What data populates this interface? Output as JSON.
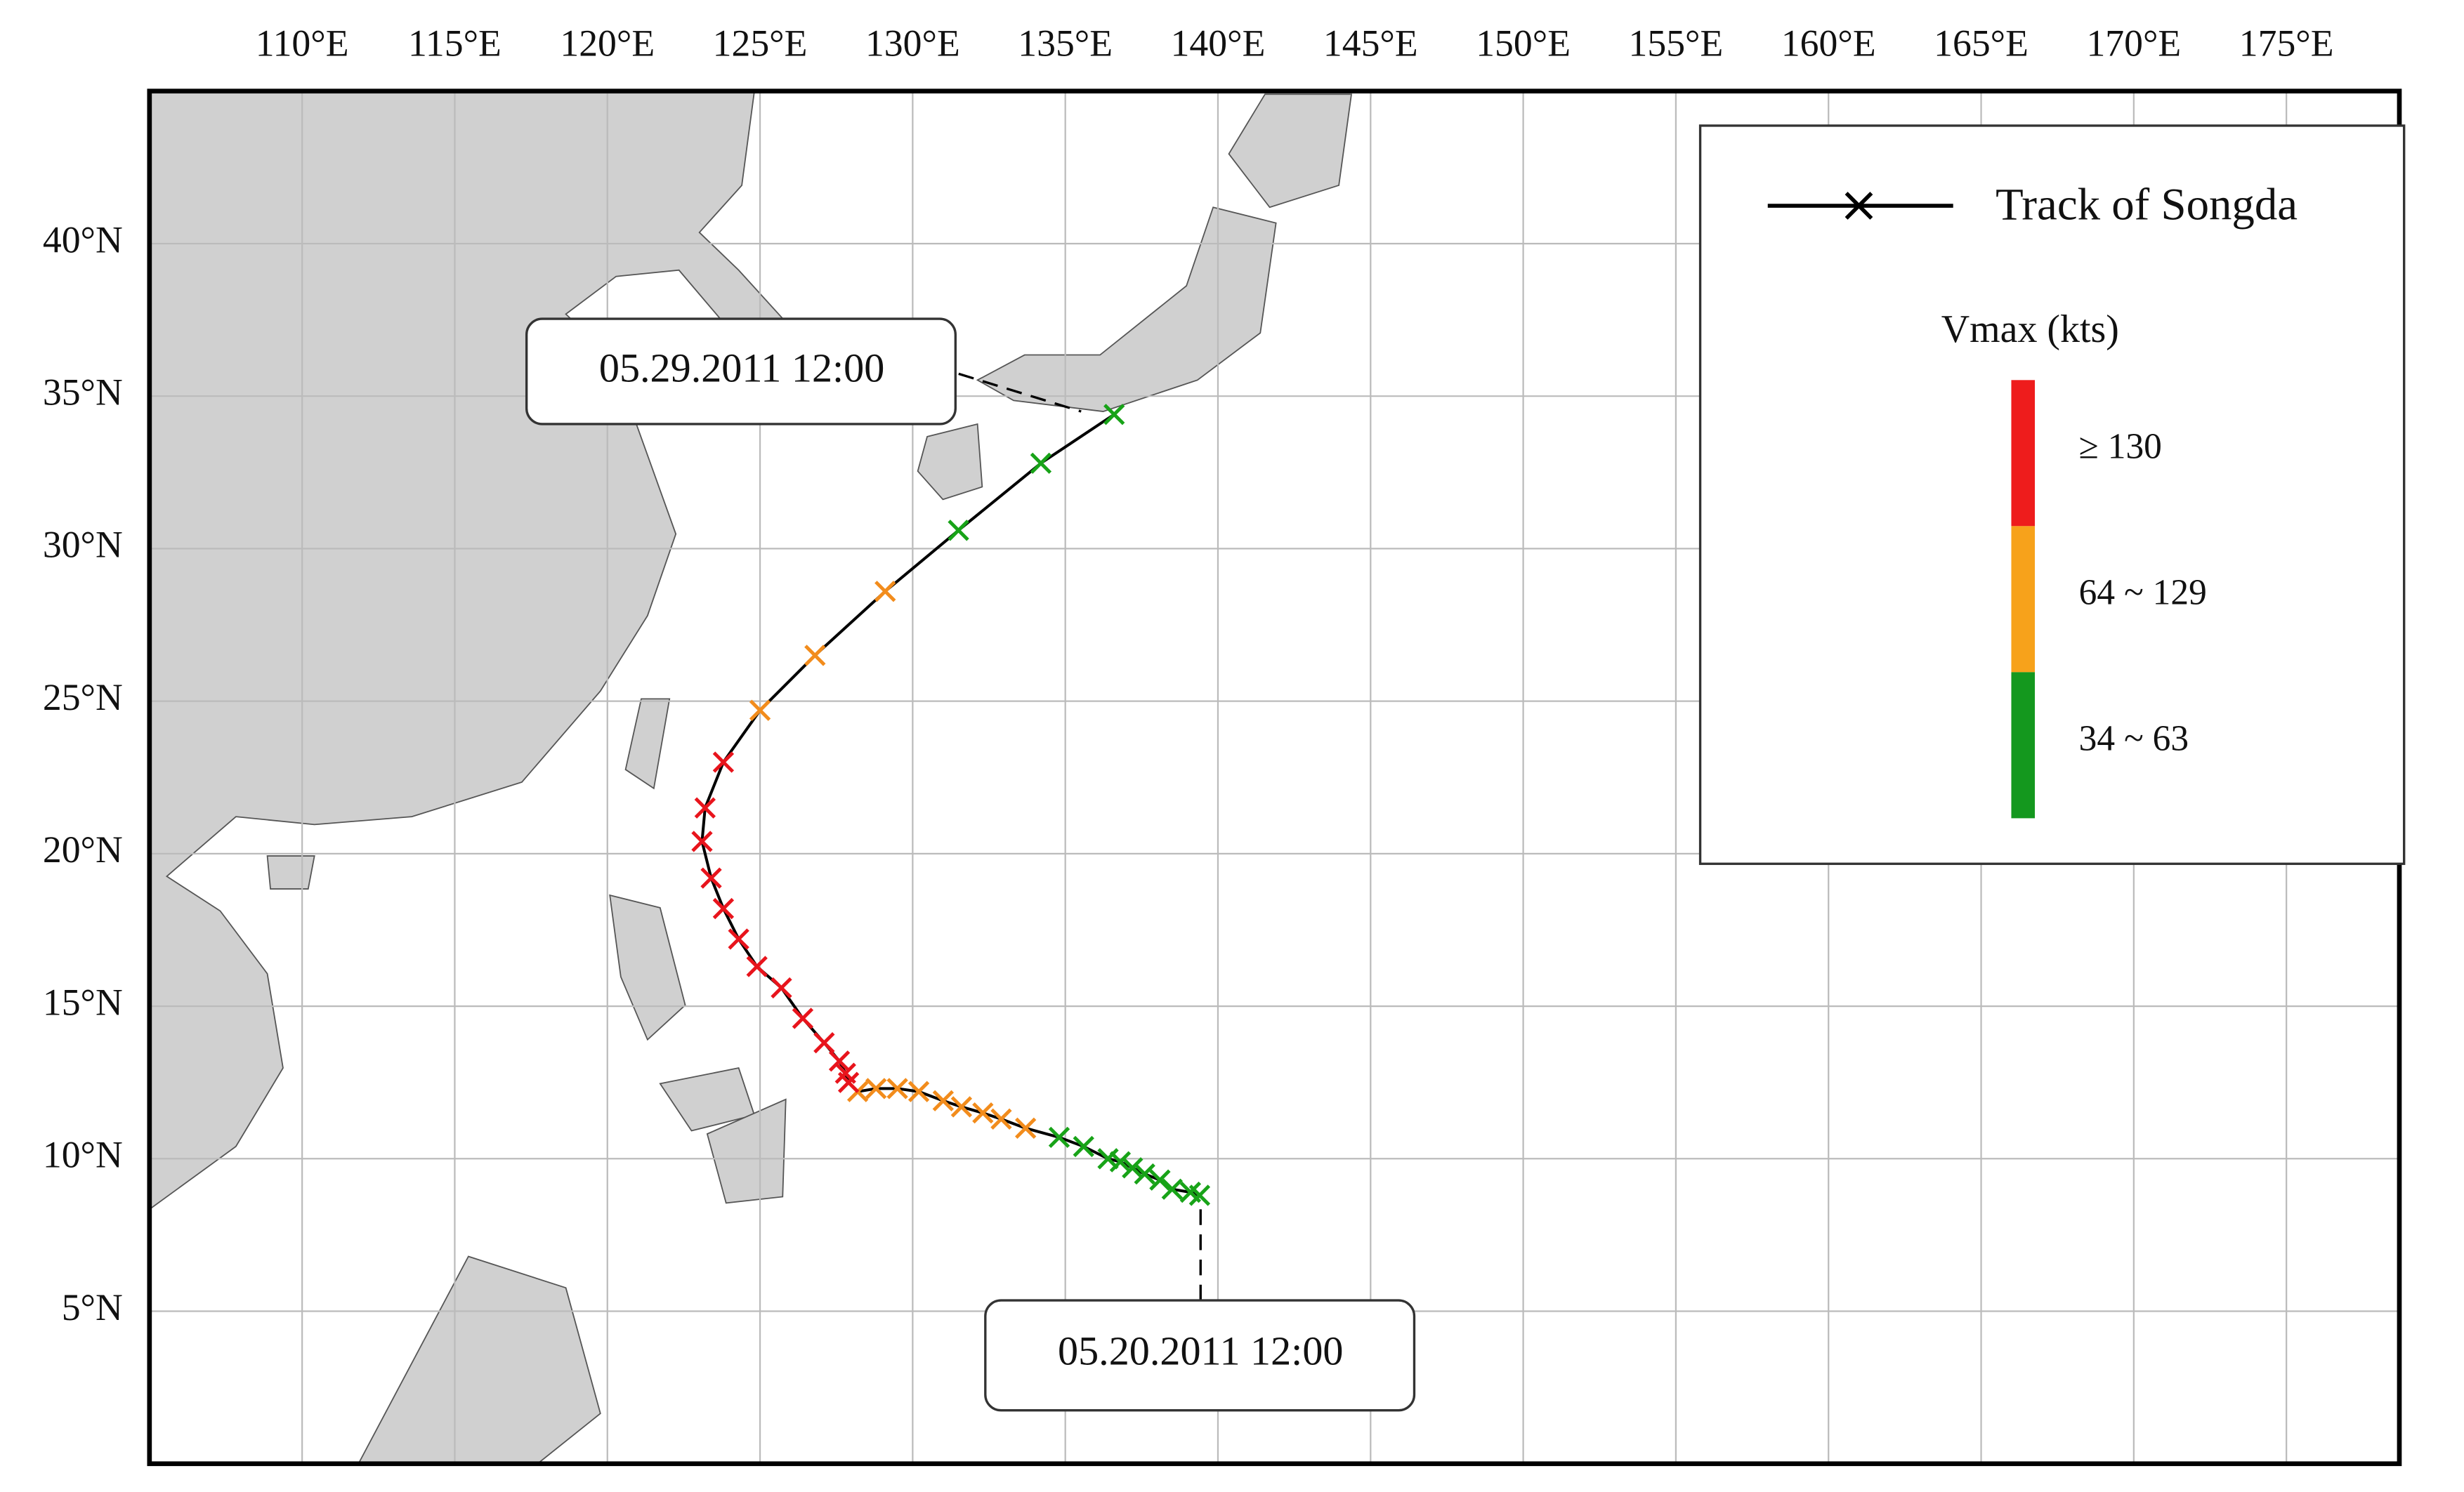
{
  "chart_data": {
    "type": "track",
    "xlim": [
      105,
      178.7
    ],
    "ylim": [
      0,
      45
    ],
    "xticks": [
      {
        "value": 110,
        "label": "110°E"
      },
      {
        "value": 115,
        "label": "115°E"
      },
      {
        "value": 120,
        "label": "120°E"
      },
      {
        "value": 125,
        "label": "125°E"
      },
      {
        "value": 130,
        "label": "130°E"
      },
      {
        "value": 135,
        "label": "135°E"
      },
      {
        "value": 140,
        "label": "140°E"
      },
      {
        "value": 145,
        "label": "145°E"
      },
      {
        "value": 150,
        "label": "150°E"
      },
      {
        "value": 155,
        "label": "155°E"
      },
      {
        "value": 160,
        "label": "160°E"
      },
      {
        "value": 165,
        "label": "165°E"
      },
      {
        "value": 170,
        "label": "170°E"
      },
      {
        "value": 175,
        "label": "175°E"
      }
    ],
    "yticks": [
      {
        "value": 5,
        "label": "5°N"
      },
      {
        "value": 10,
        "label": "10°N"
      },
      {
        "value": 15,
        "label": "15°N"
      },
      {
        "value": 20,
        "label": "20°N"
      },
      {
        "value": 25,
        "label": "25°N"
      },
      {
        "value": 30,
        "label": "30°N"
      },
      {
        "value": 35,
        "label": "35°N"
      },
      {
        "value": 40,
        "label": "40°N"
      }
    ],
    "grid": true,
    "track": {
      "name": "Track of Songda",
      "line_color": "#000000",
      "x": [
        139.4,
        139.1,
        138.5,
        138.1,
        137.6,
        137.2,
        136.8,
        136.4,
        135.6,
        134.8,
        133.7,
        132.9,
        132.3,
        131.6,
        131.0,
        130.2,
        129.5,
        128.8,
        128.2,
        127.9,
        127.8,
        127.6,
        127.1,
        126.4,
        125.7,
        124.9,
        124.3,
        123.8,
        123.4,
        123.1,
        123.2,
        123.8,
        125.0,
        126.8,
        129.1,
        131.5,
        134.2,
        136.6
      ],
      "y": [
        8.8,
        8.9,
        9.0,
        9.3,
        9.5,
        9.7,
        9.9,
        10.0,
        10.4,
        10.7,
        11.0,
        11.3,
        11.5,
        11.7,
        11.9,
        12.2,
        12.3,
        12.3,
        12.2,
        12.5,
        12.8,
        13.2,
        13.8,
        14.6,
        15.6,
        16.3,
        17.2,
        18.2,
        19.2,
        20.4,
        21.5,
        23.0,
        24.7,
        26.5,
        28.6,
        30.6,
        32.8,
        34.4
      ],
      "colors": [
        "#18a318",
        "#18a318",
        "#18a318",
        "#18a318",
        "#18a318",
        "#18a318",
        "#18a318",
        "#18a318",
        "#18a318",
        "#18a318",
        "#f28c1c",
        "#f28c1c",
        "#f28c1c",
        "#f28c1c",
        "#f28c1c",
        "#f28c1c",
        "#f28c1c",
        "#f28c1c",
        "#f28c1c",
        "#e8141c",
        "#e8141c",
        "#e8141c",
        "#e8141c",
        "#e8141c",
        "#e8141c",
        "#e8141c",
        "#e8141c",
        "#e8141c",
        "#e8141c",
        "#e8141c",
        "#e8141c",
        "#e8141c",
        "#f28c1c",
        "#f28c1c",
        "#f28c1c",
        "#18a318",
        "#18a318",
        "#18a318"
      ]
    },
    "legend": {
      "title": "Vmax (kts)",
      "classes": [
        {
          "label": "≥ 130",
          "color": "#ee1c1c"
        },
        {
          "label": "64 ~ 129",
          "color": "#f7a21b"
        },
        {
          "label": "34 ~ 63",
          "color": "#14981e"
        }
      ]
    },
    "annotations": [
      {
        "text": "05.29.2011  12:00"
      },
      {
        "text": "05.20.2011  12:00"
      }
    ]
  }
}
